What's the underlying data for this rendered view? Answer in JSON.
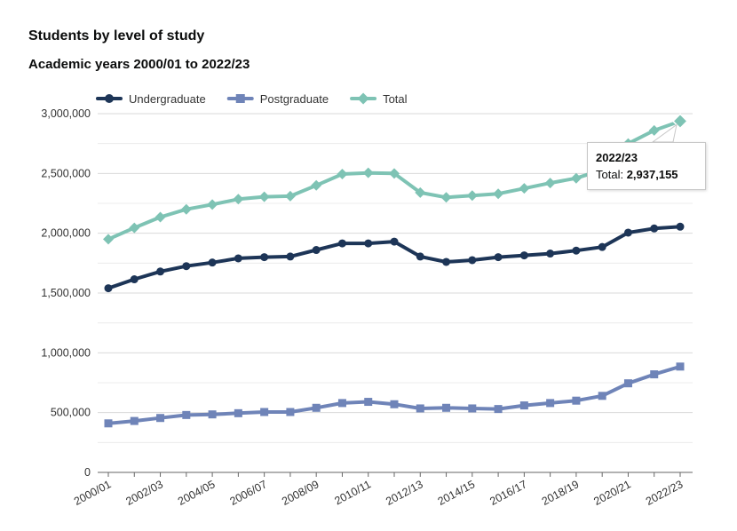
{
  "chart_data": {
    "type": "line",
    "title": "Students by level of study",
    "subtitle": "Academic years 2000/01 to 2022/23",
    "xlabel": "",
    "ylabel": "",
    "ylim": [
      0,
      3000000
    ],
    "yticks": [
      "0",
      "500,000",
      "1,000,000",
      "1,500,000",
      "2,000,000",
      "2,500,000",
      "3,000,000"
    ],
    "ytick_values": [
      0,
      500000,
      1000000,
      1500000,
      2000000,
      2500000,
      3000000
    ],
    "grid": true,
    "legend": "top-left",
    "categories": [
      "2000/01",
      "2001/02",
      "2002/03",
      "2003/04",
      "2004/05",
      "2005/06",
      "2006/07",
      "2007/08",
      "2008/09",
      "2009/10",
      "2010/11",
      "2011/12",
      "2012/13",
      "2013/14",
      "2014/15",
      "2015/16",
      "2016/17",
      "2017/18",
      "2018/19",
      "2019/20",
      "2020/21",
      "2021/22",
      "2022/23"
    ],
    "x_tick_labels": [
      "2000/01",
      "2002/03",
      "2004/05",
      "2006/07",
      "2008/09",
      "2010/11",
      "2012/13",
      "2014/15",
      "2016/17",
      "2018/19",
      "2020/21",
      "2022/23"
    ],
    "series": [
      {
        "name": "Undergraduate",
        "color": "#1d3557",
        "marker": "circle",
        "values": [
          1540000,
          1615000,
          1680000,
          1725000,
          1755000,
          1790000,
          1800000,
          1805000,
          1860000,
          1915000,
          1915000,
          1930000,
          1805000,
          1760000,
          1775000,
          1800000,
          1815000,
          1830000,
          1855000,
          1885000,
          2005000,
          2040000,
          2055000
        ]
      },
      {
        "name": "Postgraduate",
        "color": "#6f84b8",
        "marker": "square",
        "values": [
          410000,
          430000,
          455000,
          480000,
          485000,
          495000,
          505000,
          505000,
          540000,
          580000,
          590000,
          570000,
          535000,
          540000,
          535000,
          530000,
          560000,
          580000,
          600000,
          640000,
          745000,
          820000,
          885000
        ]
      },
      {
        "name": "Total",
        "color": "#7ec3b4",
        "marker": "diamond",
        "values": [
          1950000,
          2045000,
          2135000,
          2200000,
          2240000,
          2285000,
          2305000,
          2310000,
          2400000,
          2495000,
          2505000,
          2500000,
          2340000,
          2300000,
          2315000,
          2330000,
          2375000,
          2420000,
          2460000,
          2530000,
          2750000,
          2860000,
          2937155
        ]
      }
    ]
  },
  "tooltip": {
    "category": "2022/23",
    "label": "Total:",
    "value": "2,937,155"
  }
}
